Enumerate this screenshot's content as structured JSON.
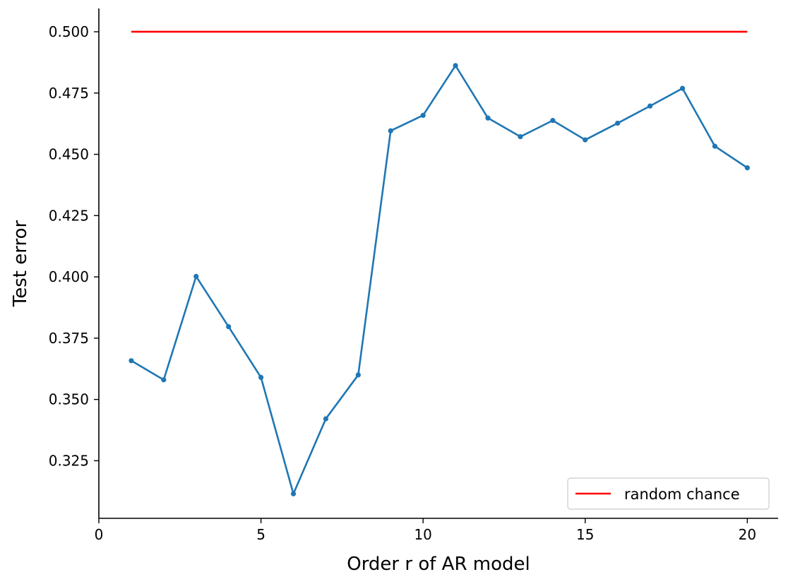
{
  "chart_data": {
    "type": "line",
    "title": "",
    "xlabel": "Order r of AR model",
    "ylabel": "Test error",
    "xlim": [
      0,
      20.95
    ],
    "ylim": [
      0.3015,
      0.5095
    ],
    "xticks": [
      0,
      5,
      10,
      15,
      20
    ],
    "xtick_labels": [
      "0",
      "5",
      "10",
      "15",
      "20"
    ],
    "yticks": [
      0.325,
      0.35,
      0.375,
      0.4,
      0.425,
      0.45,
      0.475,
      0.5
    ],
    "ytick_labels": [
      "0.325",
      "0.350",
      "0.375",
      "0.400",
      "0.425",
      "0.450",
      "0.475",
      "0.500"
    ],
    "grid": false,
    "legend_position": "lower-right",
    "series": [
      {
        "label": "",
        "color": "#1f77b4",
        "marker": "dot",
        "x": [
          1,
          2,
          3,
          4,
          5,
          6,
          7,
          8,
          9,
          10,
          11,
          12,
          13,
          14,
          15,
          16,
          17,
          18,
          19,
          20
        ],
        "y": [
          0.3658,
          0.358,
          0.4002,
          0.3797,
          0.359,
          0.3115,
          0.3421,
          0.36,
          0.4596,
          0.4659,
          0.4862,
          0.4648,
          0.4572,
          0.4638,
          0.4559,
          0.4627,
          0.4697,
          0.4769,
          0.4533,
          0.4445
        ]
      },
      {
        "name": "random chance",
        "color": "#ff0000",
        "marker": "none",
        "x": [
          1,
          20
        ],
        "y": [
          0.5,
          0.5
        ]
      }
    ]
  }
}
